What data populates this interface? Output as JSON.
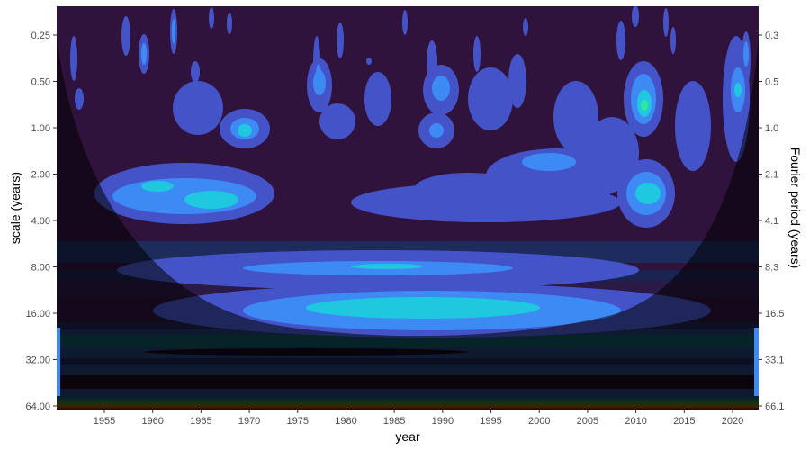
{
  "chart_data": {
    "type": "heatmap",
    "subtype": "wavelet power spectrum (filled contours) with cone of influence",
    "xlabel": "year",
    "ylabel": "scale (years)",
    "ylabel_right": "Fourier period (years)",
    "xlim": [
      1950,
      2023
    ],
    "ylim": [
      0.16,
      67
    ],
    "y_scale": "log2",
    "y_reversed": true,
    "x_ticks": [
      "1955",
      "1960",
      "1965",
      "1970",
      "1975",
      "1980",
      "1985",
      "1990",
      "1995",
      "2000",
      "2005",
      "2010",
      "2015",
      "2020"
    ],
    "y_ticks": [
      "0.25",
      "0.50",
      "1.00",
      "2.00",
      "4.00",
      "8.00",
      "16.00",
      "32.00",
      "64.00"
    ],
    "y_ticks_right": [
      "0.3",
      "0.5",
      "1.0",
      "2.1",
      "4.1",
      "8.3",
      "16.5",
      "33.1",
      "66.1"
    ],
    "palette": [
      "#30133d",
      "#4454c8",
      "#3e8af5",
      "#1fc8de",
      "#2ee8a0",
      "#f5a623",
      "#c03a0c",
      "#5c0a05"
    ],
    "cone_of_influence": "shaded darker outside",
    "grid": false,
    "legend": "none"
  }
}
